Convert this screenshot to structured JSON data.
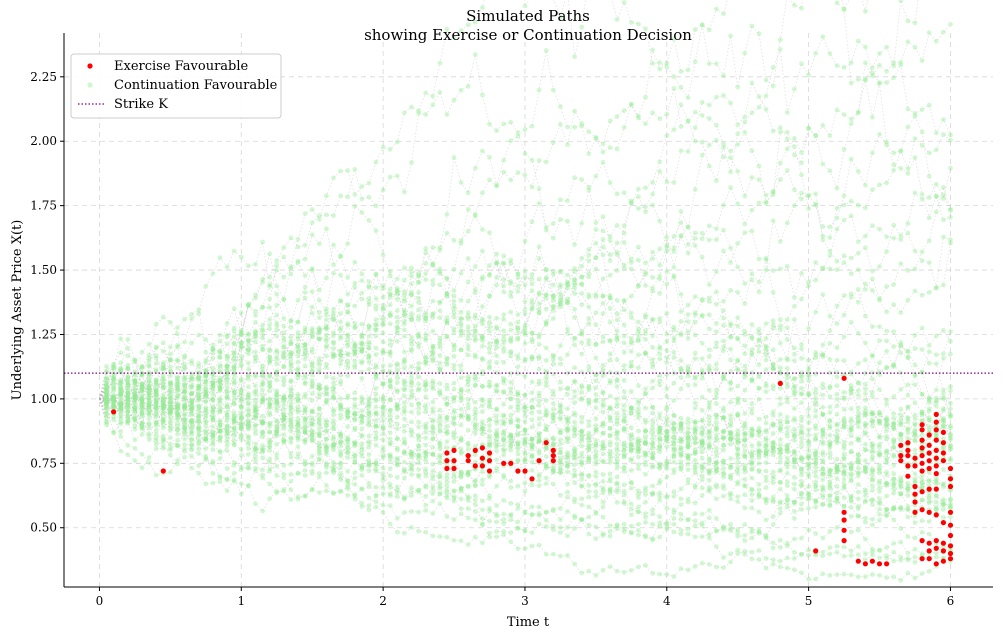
{
  "chart_data": {
    "type": "scatter",
    "title": "Simulated Paths",
    "subtitle": "showing Exercise or Continuation Decision",
    "xlabel": "Time t",
    "ylabel": "Underlying Asset Price X(t)",
    "xlim": [
      -0.25,
      6.3
    ],
    "ylim": [
      0.27,
      2.42
    ],
    "x_ticks": [
      0,
      1,
      2,
      3,
      4,
      5,
      6
    ],
    "x_tick_labels": [
      "0",
      "1",
      "2",
      "3",
      "4",
      "5",
      "6"
    ],
    "y_ticks": [
      0.5,
      0.75,
      1.0,
      1.25,
      1.5,
      1.75,
      2.0,
      2.25
    ],
    "y_tick_labels": [
      "0.50",
      "0.75",
      "1.00",
      "1.25",
      "1.50",
      "1.75",
      "2.00",
      "2.25"
    ],
    "grid": true,
    "legend_position": "top-left",
    "strike": 1.1,
    "legend": [
      {
        "label": "Exercise Favourable",
        "marker": "dot",
        "color": "#ff0000"
      },
      {
        "label": "Continuation Favourable",
        "marker": "dot",
        "color": "#90ee90"
      },
      {
        "label": "Strike K",
        "marker": "dotted-line",
        "color": "#800080"
      }
    ],
    "simulation": {
      "n_paths": 50,
      "n_steps": 120,
      "x0": 1.0,
      "t_max": 6.0,
      "sigma": 0.12,
      "drift": 0.0
    },
    "series": [
      {
        "name": "Exercise Favourable",
        "color": "#ff0000",
        "points": [
          [
            0.1,
            0.95
          ],
          [
            0.45,
            0.72
          ],
          [
            2.45,
            0.79
          ],
          [
            2.45,
            0.76
          ],
          [
            2.45,
            0.73
          ],
          [
            2.5,
            0.8
          ],
          [
            2.5,
            0.76
          ],
          [
            2.5,
            0.73
          ],
          [
            2.6,
            0.78
          ],
          [
            2.6,
            0.76
          ],
          [
            2.65,
            0.8
          ],
          [
            2.65,
            0.74
          ],
          [
            2.7,
            0.81
          ],
          [
            2.7,
            0.77
          ],
          [
            2.7,
            0.74
          ],
          [
            2.75,
            0.79
          ],
          [
            2.75,
            0.76
          ],
          [
            2.75,
            0.72
          ],
          [
            2.85,
            0.75
          ],
          [
            2.9,
            0.75
          ],
          [
            2.95,
            0.72
          ],
          [
            3.0,
            0.72
          ],
          [
            3.05,
            0.69
          ],
          [
            3.1,
            0.76
          ],
          [
            3.15,
            0.83
          ],
          [
            3.2,
            0.8
          ],
          [
            3.2,
            0.78
          ],
          [
            3.2,
            0.76
          ],
          [
            4.8,
            1.06
          ],
          [
            5.05,
            0.41
          ],
          [
            5.25,
            1.08
          ],
          [
            5.25,
            0.56
          ],
          [
            5.25,
            0.53
          ],
          [
            5.25,
            0.49
          ],
          [
            5.25,
            0.45
          ],
          [
            5.35,
            0.37
          ],
          [
            5.4,
            0.36
          ],
          [
            5.45,
            0.37
          ],
          [
            5.5,
            0.36
          ],
          [
            5.55,
            0.36
          ],
          [
            5.65,
            0.82
          ],
          [
            5.65,
            0.78
          ],
          [
            5.65,
            0.76
          ],
          [
            5.7,
            0.83
          ],
          [
            5.7,
            0.8
          ],
          [
            5.7,
            0.78
          ],
          [
            5.7,
            0.74
          ],
          [
            5.7,
            0.7
          ],
          [
            5.75,
            0.77
          ],
          [
            5.75,
            0.74
          ],
          [
            5.75,
            0.66
          ],
          [
            5.75,
            0.63
          ],
          [
            5.75,
            0.6
          ],
          [
            5.75,
            0.56
          ],
          [
            5.8,
            0.9
          ],
          [
            5.8,
            0.88
          ],
          [
            5.8,
            0.84
          ],
          [
            5.8,
            0.81
          ],
          [
            5.8,
            0.78
          ],
          [
            5.8,
            0.75
          ],
          [
            5.8,
            0.72
          ],
          [
            5.8,
            0.64
          ],
          [
            5.8,
            0.57
          ],
          [
            5.8,
            0.45
          ],
          [
            5.8,
            0.38
          ],
          [
            5.85,
            0.86
          ],
          [
            5.85,
            0.82
          ],
          [
            5.85,
            0.79
          ],
          [
            5.85,
            0.76
          ],
          [
            5.85,
            0.73
          ],
          [
            5.85,
            0.65
          ],
          [
            5.85,
            0.56
          ],
          [
            5.85,
            0.44
          ],
          [
            5.85,
            0.41
          ],
          [
            5.85,
            0.38
          ],
          [
            5.9,
            0.94
          ],
          [
            5.9,
            0.91
          ],
          [
            5.9,
            0.88
          ],
          [
            5.9,
            0.84
          ],
          [
            5.9,
            0.8
          ],
          [
            5.9,
            0.77
          ],
          [
            5.9,
            0.74
          ],
          [
            5.9,
            0.71
          ],
          [
            5.9,
            0.65
          ],
          [
            5.9,
            0.55
          ],
          [
            5.9,
            0.45
          ],
          [
            5.9,
            0.42
          ],
          [
            5.9,
            0.36
          ],
          [
            5.95,
            0.87
          ],
          [
            5.95,
            0.83
          ],
          [
            5.95,
            0.79
          ],
          [
            5.95,
            0.76
          ],
          [
            5.95,
            0.52
          ],
          [
            5.95,
            0.44
          ],
          [
            5.95,
            0.41
          ],
          [
            5.95,
            0.37
          ],
          [
            6.0,
            0.73
          ],
          [
            6.0,
            0.69
          ],
          [
            6.0,
            0.66
          ],
          [
            6.0,
            0.56
          ],
          [
            6.0,
            0.51
          ],
          [
            6.0,
            0.47
          ],
          [
            6.0,
            0.43
          ],
          [
            6.0,
            0.4
          ],
          [
            6.0,
            0.38
          ]
        ]
      }
    ]
  }
}
